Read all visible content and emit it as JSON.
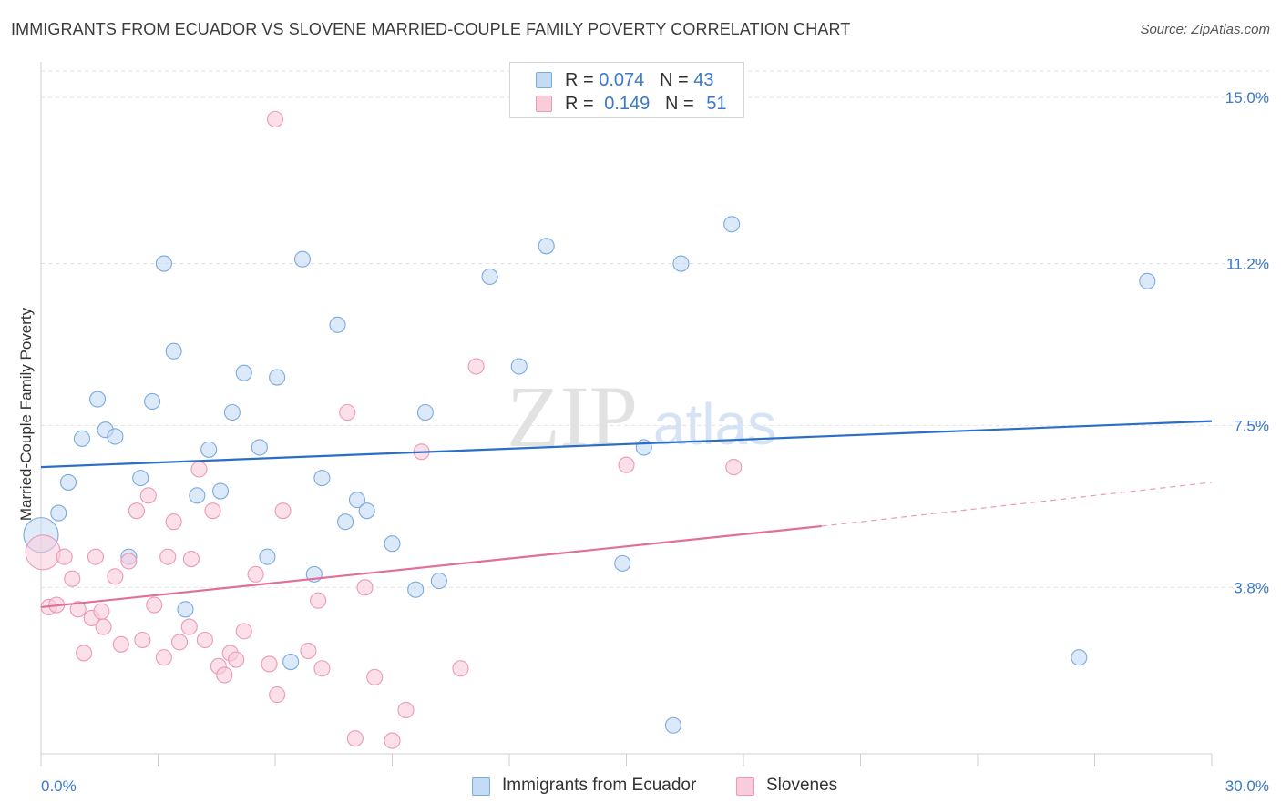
{
  "header": {
    "title": "IMMIGRANTS FROM ECUADOR VS SLOVENE MARRIED-COUPLE FAMILY POVERTY CORRELATION CHART",
    "source": "Source: ZipAtlas.com"
  },
  "legend": {
    "rows": [
      {
        "r_label": "R =",
        "r_value": "0.074",
        "n_label": "N =",
        "n_value": "43"
      },
      {
        "r_label": "R =",
        "r_value": "0.149",
        "n_label": "N =",
        "n_value": "51"
      }
    ]
  },
  "bottom_legend": {
    "items": [
      {
        "label": "Immigrants from Ecuador"
      },
      {
        "label": "Slovenes"
      }
    ]
  },
  "watermark": {
    "part1": "ZIP",
    "part2": "atlas"
  },
  "colors": {
    "blue_fill": "#c5daf3",
    "blue_stroke": "#7aaae0",
    "blue_line": "#2b6ec9",
    "pink_fill": "#f9ccda",
    "pink_stroke": "#eb9ab5",
    "pink_line": "#e0709a",
    "grid": "#e2e2e2",
    "tick_label": "#3a78c9"
  },
  "chart_data": {
    "type": "scatter",
    "title": "IMMIGRANTS FROM ECUADOR VS SLOVENE MARRIED-COUPLE FAMILY POVERTY CORRELATION CHART",
    "xlabel": "",
    "ylabel": "Married-Couple Family Poverty",
    "xlim": [
      0,
      30
    ],
    "ylim": [
      0,
      15.6
    ],
    "x_tick_labels": [
      {
        "value": 0,
        "label": "0.0%"
      },
      {
        "value": 30,
        "label": "30.0%"
      }
    ],
    "y_ticks": [
      {
        "value": 3.8,
        "label": "3.8%"
      },
      {
        "value": 7.5,
        "label": "7.5%"
      },
      {
        "value": 11.2,
        "label": "11.2%"
      },
      {
        "value": 15.0,
        "label": "15.0%"
      }
    ],
    "grid": true,
    "series": [
      {
        "name": "Immigrants from Ecuador",
        "color": "#7aaae0",
        "points": [
          [
            0.0,
            5.0
          ],
          [
            0.45,
            5.5
          ],
          [
            0.7,
            6.2
          ],
          [
            1.05,
            7.2
          ],
          [
            1.45,
            8.1
          ],
          [
            1.65,
            7.4
          ],
          [
            1.9,
            7.25
          ],
          [
            2.25,
            4.5
          ],
          [
            2.55,
            6.3
          ],
          [
            2.85,
            8.05
          ],
          [
            3.15,
            11.2
          ],
          [
            3.4,
            9.2
          ],
          [
            3.7,
            3.3
          ],
          [
            4.0,
            5.9
          ],
          [
            4.3,
            6.95
          ],
          [
            4.6,
            6.0
          ],
          [
            4.9,
            7.8
          ],
          [
            5.2,
            8.7
          ],
          [
            5.6,
            7.0
          ],
          [
            5.8,
            4.5
          ],
          [
            6.05,
            8.6
          ],
          [
            6.4,
            2.1
          ],
          [
            6.7,
            11.3
          ],
          [
            7.0,
            4.1
          ],
          [
            7.2,
            6.3
          ],
          [
            7.6,
            9.8
          ],
          [
            7.8,
            5.3
          ],
          [
            8.1,
            5.8
          ],
          [
            8.35,
            5.55
          ],
          [
            9.0,
            4.8
          ],
          [
            9.6,
            3.75
          ],
          [
            9.85,
            7.8
          ],
          [
            10.2,
            3.95
          ],
          [
            11.5,
            10.9
          ],
          [
            12.25,
            8.85
          ],
          [
            12.95,
            11.6
          ],
          [
            14.9,
            4.35
          ],
          [
            15.45,
            7.0
          ],
          [
            16.2,
            0.65
          ],
          [
            16.4,
            11.2
          ],
          [
            17.7,
            12.1
          ],
          [
            26.6,
            2.2
          ],
          [
            28.35,
            10.8
          ]
        ]
      },
      {
        "name": "Slovenes",
        "color": "#eb9ab5",
        "points": [
          [
            0.05,
            4.6
          ],
          [
            0.2,
            3.35
          ],
          [
            0.4,
            3.4
          ],
          [
            0.6,
            4.5
          ],
          [
            0.8,
            4.0
          ],
          [
            0.95,
            3.3
          ],
          [
            1.1,
            2.3
          ],
          [
            1.3,
            3.1
          ],
          [
            1.4,
            4.5
          ],
          [
            1.55,
            3.25
          ],
          [
            1.6,
            2.9
          ],
          [
            1.9,
            4.05
          ],
          [
            2.05,
            2.5
          ],
          [
            2.25,
            4.4
          ],
          [
            2.45,
            5.55
          ],
          [
            2.6,
            2.6
          ],
          [
            2.75,
            5.9
          ],
          [
            2.9,
            3.4
          ],
          [
            3.15,
            2.2
          ],
          [
            3.25,
            4.5
          ],
          [
            3.4,
            5.3
          ],
          [
            3.55,
            2.55
          ],
          [
            3.8,
            2.9
          ],
          [
            3.85,
            4.45
          ],
          [
            4.05,
            6.5
          ],
          [
            4.2,
            2.6
          ],
          [
            4.4,
            5.55
          ],
          [
            4.55,
            2.0
          ],
          [
            4.7,
            1.8
          ],
          [
            4.85,
            2.3
          ],
          [
            5.0,
            2.15
          ],
          [
            5.2,
            2.8
          ],
          [
            5.5,
            4.1
          ],
          [
            5.85,
            2.05
          ],
          [
            6.05,
            1.35
          ],
          [
            6.2,
            5.55
          ],
          [
            6.85,
            2.35
          ],
          [
            7.1,
            3.5
          ],
          [
            7.2,
            1.95
          ],
          [
            7.85,
            7.8
          ],
          [
            8.05,
            0.35
          ],
          [
            8.3,
            3.8
          ],
          [
            8.55,
            1.75
          ],
          [
            9.0,
            0.3
          ],
          [
            9.35,
            1.0
          ],
          [
            9.75,
            6.9
          ],
          [
            10.75,
            1.95
          ],
          [
            11.15,
            8.85
          ],
          [
            15.0,
            6.6
          ],
          [
            17.75,
            6.55
          ],
          [
            6.0,
            14.5
          ]
        ]
      }
    ],
    "trend_lines": [
      {
        "series": "Immigrants from Ecuador",
        "x": [
          0,
          30
        ],
        "y": [
          6.55,
          7.6
        ],
        "style": "solid"
      },
      {
        "series": "Slovenes",
        "x": [
          0,
          20
        ],
        "y": [
          3.35,
          5.2
        ],
        "style": "solid"
      },
      {
        "series": "Slovenes",
        "x": [
          20,
          30
        ],
        "y": [
          5.2,
          6.2
        ],
        "style": "dashed"
      }
    ]
  }
}
